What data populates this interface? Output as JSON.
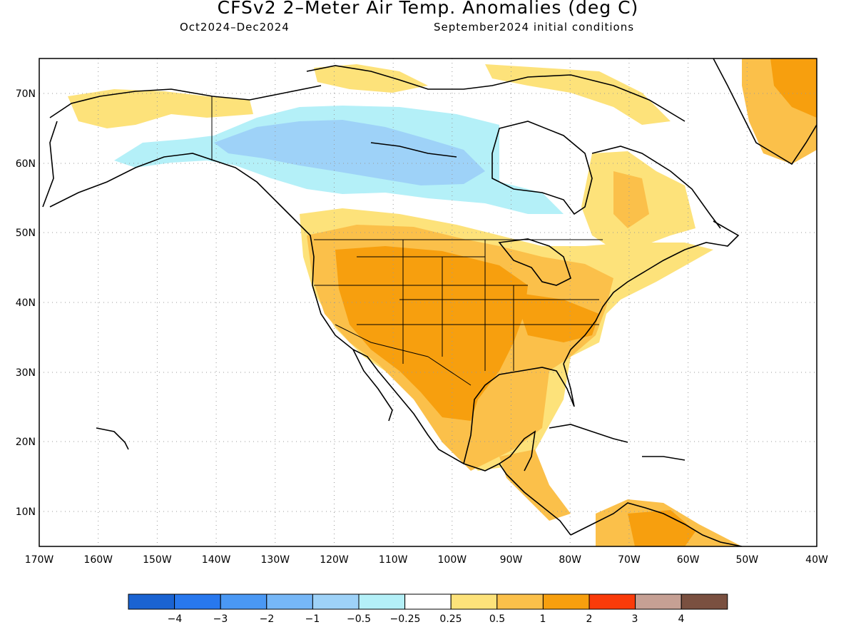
{
  "title": "CFSv2 2–Meter Air Temp. Anomalies (deg C)",
  "period": "Oct2024–Dec2024",
  "initial_conditions": "September2024 initial conditions",
  "lat_labels": [
    "70N",
    "60N",
    "50N",
    "40N",
    "30N",
    "20N",
    "10N"
  ],
  "lon_labels": [
    "170W",
    "160W",
    "150W",
    "140W",
    "130W",
    "120W",
    "110W",
    "100W",
    "90W",
    "80W",
    "70W",
    "60W",
    "50W",
    "40W"
  ],
  "colorbar": {
    "colors": [
      "#1a63d2",
      "#2878ee",
      "#4a98f4",
      "#76b7f7",
      "#9ed2f8",
      "#b4f0f8",
      "#ffffff",
      "#fde27a",
      "#fbc04a",
      "#f79f0e",
      "#fa3b0a",
      "#c6a094",
      "#7a5040"
    ],
    "labels": [
      "−4",
      "−3",
      "−2",
      "−1",
      "−0.5",
      "−0.25",
      "0.25",
      "0.5",
      "1",
      "2",
      "3",
      "4"
    ]
  }
}
